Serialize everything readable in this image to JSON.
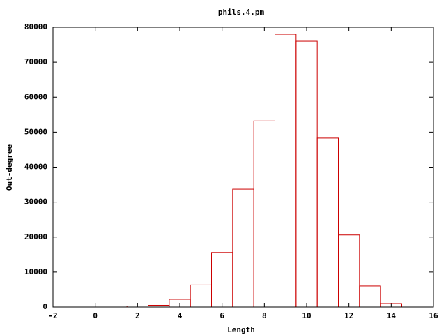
{
  "chart_data": {
    "type": "histogram",
    "title": "phils.4.pm",
    "x_label": "Length",
    "y_label": "Out-degree",
    "bins": [
      1.5,
      2.5,
      3.5,
      4.5,
      5.5,
      6.5,
      7.5,
      8.5,
      9.5,
      10.5,
      11.5,
      12.5,
      13.5,
      14.5
    ],
    "values": [
      300,
      500,
      2200,
      6300,
      15600,
      33700,
      53200,
      78000,
      76000,
      48300,
      20600,
      6000,
      1000
    ],
    "color": "#cc0000",
    "xlim": [
      -2,
      16
    ],
    "xticks": [
      -2,
      0,
      2,
      4,
      6,
      8,
      10,
      12,
      14,
      16
    ],
    "ylim": [
      0,
      80000
    ],
    "yticks": [
      0,
      10000,
      20000,
      30000,
      40000,
      50000,
      60000,
      70000,
      80000
    ]
  }
}
